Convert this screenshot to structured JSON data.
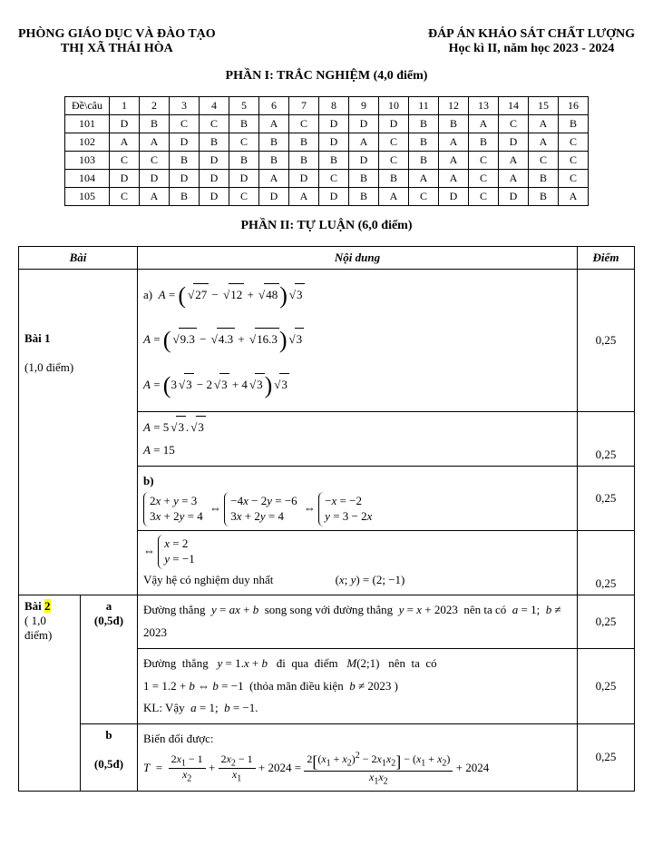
{
  "header": {
    "left_line1": "PHÒNG GIÁO DỤC VÀ ĐÀO TẠO",
    "left_line2": "THỊ XÃ THÁI HÒA",
    "right_line1": "ĐÁP ÁN KHẢO SÁT  CHẤT LƯỢNG",
    "right_line2": "Học kì II, năm học 2023 - 2024"
  },
  "section1_title": "PHẦN I: TRẮC NGHIỆM (4,0 điểm)",
  "answer_key": {
    "cols": [
      "Đề\\câu",
      "1",
      "2",
      "3",
      "4",
      "5",
      "6",
      "7",
      "8",
      "9",
      "10",
      "11",
      "12",
      "13",
      "14",
      "15",
      "16"
    ],
    "rows": [
      [
        "101",
        "D",
        "B",
        "C",
        "C",
        "B",
        "A",
        "C",
        "D",
        "D",
        "D",
        "B",
        "B",
        "A",
        "C",
        "A",
        "B"
      ],
      [
        "102",
        "A",
        "A",
        "D",
        "B",
        "C",
        "B",
        "B",
        "D",
        "A",
        "C",
        "B",
        "A",
        "B",
        "D",
        "A",
        "C"
      ],
      [
        "103",
        "C",
        "C",
        "B",
        "D",
        "B",
        "B",
        "B",
        "B",
        "D",
        "C",
        "B",
        "A",
        "C",
        "A",
        "C",
        "C"
      ],
      [
        "104",
        "D",
        "D",
        "D",
        "D",
        "D",
        "A",
        "D",
        "C",
        "B",
        "B",
        "A",
        "A",
        "C",
        "A",
        "B",
        "C"
      ],
      [
        "105",
        "C",
        "A",
        "B",
        "D",
        "C",
        "D",
        "A",
        "D",
        "B",
        "A",
        "C",
        "D",
        "C",
        "D",
        "B",
        "A"
      ]
    ]
  },
  "section2_title": "PHẦN II: TỰ LUẬN (6,0 điểm)",
  "main_headers": {
    "bai": "Bài",
    "noidung": "Nội dung",
    "diem": "Điểm"
  },
  "bai1": {
    "label": "Bài 1",
    "weight": "(1,0 điểm)",
    "rows": [
      {
        "content_html": "a) &nbsp;<i>A</i> = <span class='bigbracket'>(</span><span class='sqrt'><span class='rad'>27</span></span> − <span class='sqrt'><span class='rad'>12</span></span> + <span class='sqrt'><span class='rad'>48</span></span><span class='bigbracket'>)</span><span class='sqrt'><span class='rad'>3</span></span><br><i>A</i> = <span class='bigbracket'>(</span><span class='sqrt'><span class='rad'>9.3</span></span> − <span class='sqrt'><span class='rad'>4.3</span></span> + <span class='sqrt'><span class='rad'>16.3</span></span><span class='bigbracket'>)</span><span class='sqrt'><span class='rad'>3</span></span><br><i>A</i> = <span class='bigbracket'>(</span>3<span class='sqrt'><span class='rad'>3</span></span> − 2<span class='sqrt'><span class='rad'>3</span></span> + 4<span class='sqrt'><span class='rad'>3</span></span><span class='bigbracket'>)</span><span class='sqrt'><span class='rad'>3</span></span>",
        "score": "0,25"
      },
      {
        "content_html": "<i>A</i> = 5<span class='sqrt'><span class='rad'>3</span></span>.<span class='sqrt'><span class='rad'>3</span></span><br><i>A</i> = 15",
        "score": "0,25"
      },
      {
        "content_html": "<b>b)</b><br><span class='brace-sys'><div>2<i>x</i> + <i>y</i> = 3</div><div>3<i>x</i> + 2<i>y</i> = 4</div></span> ⇔ <span class='brace-sys'><div>−4<i>x</i> − 2<i>y</i> = −6</div><div>3<i>x</i> + 2<i>y</i> = 4</div></span> ⇔ <span class='brace-sys'><div>−<i>x</i> = −2</div><div><i>y</i> = 3 − 2<i>x</i></div></span>",
        "score": "0,25"
      },
      {
        "content_html": "⇔ <span class='brace-sys'><div><i>x</i> = 2</div><div><i>y</i> = −1</div></span><br>Vậy hệ có nghiệm duy nhất &nbsp;&nbsp;&nbsp;&nbsp;&nbsp;&nbsp;&nbsp;&nbsp;&nbsp;&nbsp;&nbsp;&nbsp;&nbsp;&nbsp;&nbsp;&nbsp;&nbsp;&nbsp;&nbsp;&nbsp;(<i>x</i>; <i>y</i>) = (2; −1)",
        "score": "0,25"
      }
    ]
  },
  "bai2": {
    "label_prefix": "Bài ",
    "label_hl": "2",
    "weight": "( 1,0 điểm)",
    "rows": [
      {
        "sub": "a",
        "sub_weight": "(0,5đ)",
        "content_html": "Đường thẳng &nbsp;<i>y</i> = <i>ax</i> + <i>b</i> &nbsp;song song với đường thẳng &nbsp;<i>y</i> = <i>x</i> + 2023 &nbsp;nên ta có &nbsp;<i>a</i> = 1; &nbsp;<i>b</i> ≠ 2023",
        "score": "0,25"
      },
      {
        "content_html": "Đường &nbsp;thẳng &nbsp;&nbsp;<i>y</i> = 1.<i>x</i> + <i>b</i> &nbsp;&nbsp;đi &nbsp;qua &nbsp;điểm &nbsp;&nbsp;<i>M</i>(2;1) &nbsp;&nbsp;nên &nbsp;ta &nbsp;có<br>1 = 1.2 + <i>b</i> ⇔ <i>b</i> = −1 &nbsp;(thỏa mãn điều kiện &nbsp;<i>b</i> ≠ 2023 )<br>KL: Vậy &nbsp;<i>a</i> = 1; &nbsp;<i>b</i> = −1.",
        "score": "0,25"
      },
      {
        "sub": "b",
        "sub_weight": "(0,5đ)",
        "content_html": "Biến đổi được:<br><i>T</i> &nbsp;= &nbsp;<span class='frac'><span class='num'>2<i>x</i><sub>1</sub> − 1</span><span class='den'><i>x</i><sub>2</sub></span></span> + <span class='frac'><span class='num'>2<i>x</i><sub>2</sub> − 1</span><span class='den'><i>x</i><sub>1</sub></span></span> + 2024 = <span class='frac'><span class='num'>2<span class='bigbracket' style='font-size:18px'>[</span>(<i>x</i><sub>1</sub> + <i>x</i><sub>2</sub>)<sup>2</sup> − 2<i>x</i><sub>1</sub><i>x</i><sub>2</sub><span class='bigbracket' style='font-size:18px'>]</span> − (<i>x</i><sub>1</sub> + <i>x</i><sub>2</sub>)</span><span class='den'><i>x</i><sub>1</sub><i>x</i><sub>2</sub></span></span> + 2024",
        "score": "0,25"
      }
    ]
  }
}
